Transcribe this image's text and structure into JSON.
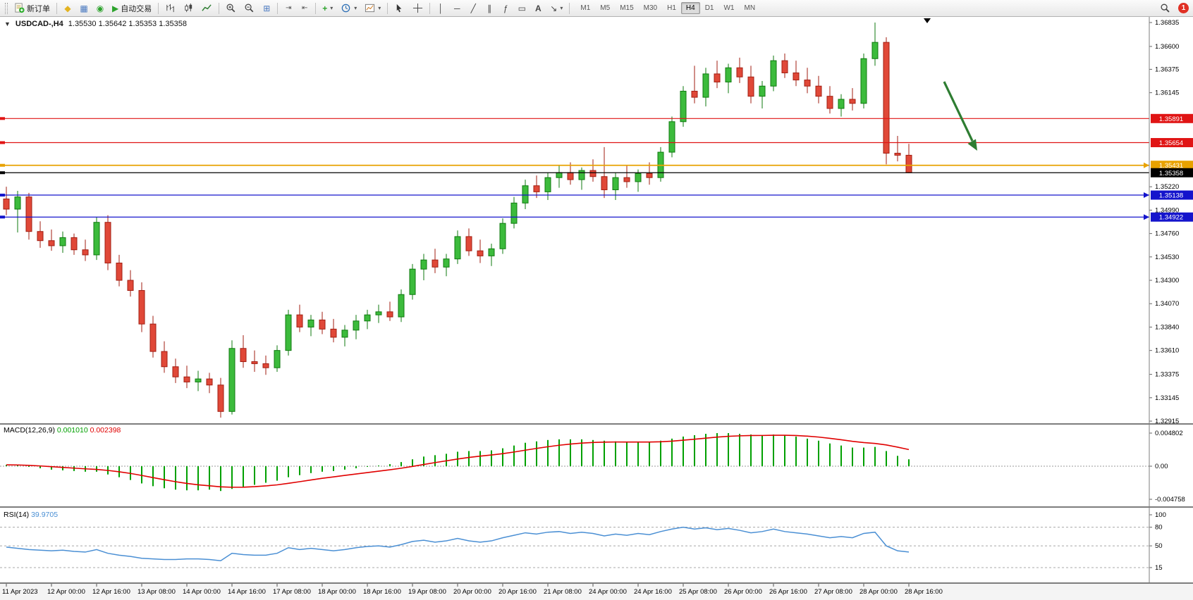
{
  "toolbar": {
    "new_order_label": "新订单",
    "autotrading_label": "自动交易",
    "timeframes": [
      "M1",
      "M5",
      "M15",
      "M30",
      "H1",
      "H4",
      "D1",
      "W1",
      "MN"
    ],
    "active_timeframe": "H4",
    "notification_count": "1"
  },
  "chart": {
    "title": "USDCAD-,H4",
    "ohlc": "1.35530 1.35642 1.35353 1.35358"
  },
  "chart_data": {
    "type": "candlestick",
    "symbol": "USDCAD-",
    "timeframe": "H4",
    "current_bar": {
      "open": 1.3553,
      "high": 1.35642,
      "low": 1.35353,
      "close": 1.35358
    },
    "price_axis": {
      "max": 1.36835,
      "min": 1.32915,
      "ticks": [
        "1.36835",
        "1.36600",
        "1.36375",
        "1.36145",
        "1.35220",
        "1.34990",
        "1.34760",
        "1.34530",
        "1.34300",
        "1.34070",
        "1.33840",
        "1.33610",
        "1.33375",
        "1.33145",
        "1.32915"
      ]
    },
    "hlines": [
      {
        "price": 1.35891,
        "label": "1.35891",
        "role": "resistance"
      },
      {
        "price": 1.35654,
        "label": "1.35654",
        "role": "resistance"
      },
      {
        "price": 1.35431,
        "label": "1.35431",
        "role": "level"
      },
      {
        "price": 1.35358,
        "label": "1.35358",
        "role": "current"
      },
      {
        "price": 1.35138,
        "label": "1.35138",
        "role": "support"
      },
      {
        "price": 1.34922,
        "label": "1.34922",
        "role": "support"
      }
    ],
    "time_labels": [
      "11 Apr 2023",
      "12 Apr 00:00",
      "12 Apr 16:00",
      "13 Apr 08:00",
      "14 Apr 00:00",
      "14 Apr 16:00",
      "17 Apr 08:00",
      "18 Apr 00:00",
      "18 Apr 16:00",
      "19 Apr 08:00",
      "20 Apr 00:00",
      "20 Apr 16:00",
      "21 Apr 08:00",
      "24 Apr 00:00",
      "24 Apr 16:00",
      "25 Apr 08:00",
      "26 Apr 00:00",
      "26 Apr 16:00",
      "27 Apr 08:00",
      "28 Apr 00:00",
      "28 Apr 16:00"
    ],
    "candles": [
      [
        1.351,
        1.3522,
        1.3494,
        1.35
      ],
      [
        1.35,
        1.3518,
        1.3477,
        1.3512
      ],
      [
        1.3512,
        1.3516,
        1.347,
        1.3478
      ],
      [
        1.3478,
        1.3488,
        1.3462,
        1.3469
      ],
      [
        1.3469,
        1.348,
        1.3459,
        1.3464
      ],
      [
        1.3464,
        1.3478,
        1.3457,
        1.3472
      ],
      [
        1.3472,
        1.3476,
        1.3455,
        1.346
      ],
      [
        1.346,
        1.347,
        1.3449,
        1.3455
      ],
      [
        1.3455,
        1.3492,
        1.345,
        1.3487
      ],
      [
        1.3487,
        1.3494,
        1.344,
        1.3447
      ],
      [
        1.3447,
        1.3455,
        1.3424,
        1.343
      ],
      [
        1.343,
        1.344,
        1.3414,
        1.342
      ],
      [
        1.342,
        1.3428,
        1.3379,
        1.3387
      ],
      [
        1.3387,
        1.3395,
        1.3354,
        1.336
      ],
      [
        1.336,
        1.337,
        1.3339,
        1.3345
      ],
      [
        1.3345,
        1.3353,
        1.3329,
        1.3335
      ],
      [
        1.3335,
        1.3346,
        1.3324,
        1.333
      ],
      [
        1.333,
        1.3341,
        1.3321,
        1.3333
      ],
      [
        1.3333,
        1.3339,
        1.3319,
        1.3327
      ],
      [
        1.3327,
        1.3334,
        1.3295,
        1.3301
      ],
      [
        1.3301,
        1.3371,
        1.3298,
        1.3363
      ],
      [
        1.3363,
        1.3376,
        1.3344,
        1.335
      ],
      [
        1.335,
        1.3361,
        1.334,
        1.3348
      ],
      [
        1.3348,
        1.3356,
        1.3337,
        1.3344
      ],
      [
        1.3344,
        1.3366,
        1.334,
        1.3361
      ],
      [
        1.3361,
        1.3401,
        1.3356,
        1.3396
      ],
      [
        1.3396,
        1.3406,
        1.3379,
        1.3384
      ],
      [
        1.3384,
        1.3396,
        1.3375,
        1.3391
      ],
      [
        1.3391,
        1.3399,
        1.3377,
        1.3382
      ],
      [
        1.3382,
        1.3392,
        1.3369,
        1.3374
      ],
      [
        1.3374,
        1.3386,
        1.3365,
        1.3381
      ],
      [
        1.3381,
        1.3396,
        1.3372,
        1.339
      ],
      [
        1.339,
        1.3401,
        1.3382,
        1.3396
      ],
      [
        1.3396,
        1.3406,
        1.3388,
        1.3399
      ],
      [
        1.3399,
        1.3409,
        1.339,
        1.3394
      ],
      [
        1.3394,
        1.3421,
        1.3389,
        1.3416
      ],
      [
        1.3416,
        1.3446,
        1.3411,
        1.3441
      ],
      [
        1.3441,
        1.3456,
        1.343,
        1.345
      ],
      [
        1.345,
        1.3461,
        1.3437,
        1.3443
      ],
      [
        1.3443,
        1.3456,
        1.3434,
        1.3451
      ],
      [
        1.3451,
        1.3479,
        1.3446,
        1.3473
      ],
      [
        1.3473,
        1.3481,
        1.3454,
        1.3459
      ],
      [
        1.3459,
        1.347,
        1.3447,
        1.3454
      ],
      [
        1.3454,
        1.3466,
        1.3444,
        1.3461
      ],
      [
        1.3461,
        1.3491,
        1.3456,
        1.3486
      ],
      [
        1.3486,
        1.3512,
        1.3481,
        1.3506
      ],
      [
        1.3506,
        1.3529,
        1.35,
        1.3523
      ],
      [
        1.3523,
        1.3533,
        1.3511,
        1.3517
      ],
      [
        1.3517,
        1.3536,
        1.3509,
        1.3531
      ],
      [
        1.3531,
        1.3543,
        1.3521,
        1.3536
      ],
      [
        1.3536,
        1.3546,
        1.3524,
        1.3529
      ],
      [
        1.3529,
        1.3541,
        1.3519,
        1.3538
      ],
      [
        1.3538,
        1.3549,
        1.3527,
        1.3532
      ],
      [
        1.3532,
        1.3561,
        1.3511,
        1.3519
      ],
      [
        1.3519,
        1.3536,
        1.3509,
        1.3531
      ],
      [
        1.3531,
        1.3543,
        1.3521,
        1.3527
      ],
      [
        1.3527,
        1.3539,
        1.3517,
        1.3535
      ],
      [
        1.3535,
        1.3546,
        1.3524,
        1.3531
      ],
      [
        1.3531,
        1.3561,
        1.3527,
        1.3556
      ],
      [
        1.3556,
        1.3591,
        1.3551,
        1.3586
      ],
      [
        1.3586,
        1.3621,
        1.3581,
        1.3616
      ],
      [
        1.3616,
        1.3641,
        1.3604,
        1.361
      ],
      [
        1.361,
        1.3639,
        1.3601,
        1.3633
      ],
      [
        1.3633,
        1.3646,
        1.3619,
        1.3625
      ],
      [
        1.3625,
        1.3643,
        1.3614,
        1.3639
      ],
      [
        1.3639,
        1.3649,
        1.3624,
        1.363
      ],
      [
        1.363,
        1.3641,
        1.3604,
        1.3611
      ],
      [
        1.3611,
        1.3626,
        1.3599,
        1.3621
      ],
      [
        1.3621,
        1.3651,
        1.3616,
        1.3646
      ],
      [
        1.3646,
        1.3653,
        1.3629,
        1.3634
      ],
      [
        1.3634,
        1.3646,
        1.3621,
        1.3627
      ],
      [
        1.3627,
        1.3639,
        1.3614,
        1.3621
      ],
      [
        1.3621,
        1.3631,
        1.3604,
        1.3611
      ],
      [
        1.3611,
        1.3621,
        1.3594,
        1.3599
      ],
      [
        1.3599,
        1.3613,
        1.3591,
        1.3608
      ],
      [
        1.3608,
        1.3619,
        1.3597,
        1.3604
      ],
      [
        1.3604,
        1.3653,
        1.3599,
        1.3648
      ],
      [
        1.3648,
        1.36835,
        1.3641,
        1.3664
      ],
      [
        1.3664,
        1.3669,
        1.3544,
        1.3555
      ],
      [
        1.3555,
        1.3572,
        1.3547,
        1.3553
      ],
      [
        1.3553,
        1.35642,
        1.35353,
        1.35358
      ]
    ],
    "macd": {
      "label": "MACD(12,26,9)",
      "value_main": "0.001010",
      "value_signal": "0.002398",
      "axis_ticks": [
        "0.004802",
        "0.00",
        "-0.004758"
      ],
      "histogram": [
        0.0002,
        0.0001,
        -0.0001,
        -0.0003,
        -0.0005,
        -0.0006,
        -0.0007,
        -0.0008,
        -0.0008,
        -0.0012,
        -0.0016,
        -0.002,
        -0.0025,
        -0.0029,
        -0.0032,
        -0.0034,
        -0.0035,
        -0.0035,
        -0.0034,
        -0.0036,
        -0.0033,
        -0.003,
        -0.0027,
        -0.0024,
        -0.0021,
        -0.0016,
        -0.0013,
        -0.001,
        -0.0008,
        -0.0007,
        -0.0005,
        -0.0003,
        -0.0001,
        0.0001,
        0.0003,
        0.0006,
        0.001,
        0.0014,
        0.0016,
        0.0018,
        0.0021,
        0.0022,
        0.0022,
        0.0023,
        0.0026,
        0.003,
        0.0034,
        0.0036,
        0.0038,
        0.0039,
        0.0039,
        0.0039,
        0.0038,
        0.0037,
        0.0036,
        0.0035,
        0.0035,
        0.0035,
        0.0037,
        0.004,
        0.0043,
        0.0045,
        0.0047,
        0.0048,
        0.0048,
        0.0047,
        0.0046,
        0.0045,
        0.0046,
        0.0045,
        0.0043,
        0.004,
        0.0037,
        0.0033,
        0.003,
        0.0027,
        0.0027,
        0.0028,
        0.0022,
        0.0015,
        0.001
      ]
    },
    "rsi": {
      "label": "RSI(14)",
      "value": "39.9705",
      "axis_ticks": [
        "100",
        "80",
        "50",
        "15"
      ],
      "levels": [
        80,
        50,
        15
      ],
      "values": [
        48,
        46,
        44,
        43,
        42,
        43,
        41,
        40,
        44,
        38,
        35,
        33,
        30,
        29,
        28,
        28,
        29,
        29,
        28,
        26,
        38,
        36,
        35,
        35,
        38,
        47,
        44,
        46,
        44,
        42,
        44,
        47,
        49,
        50,
        48,
        52,
        57,
        59,
        56,
        58,
        62,
        58,
        56,
        58,
        63,
        67,
        71,
        69,
        72,
        73,
        70,
        72,
        70,
        66,
        69,
        67,
        70,
        68,
        73,
        77,
        80,
        77,
        79,
        76,
        78,
        75,
        71,
        73,
        77,
        73,
        71,
        69,
        66,
        63,
        65,
        63,
        70,
        72,
        50,
        42,
        40
      ]
    },
    "annotations": [
      {
        "type": "arrow",
        "direction": "down-right",
        "color": "#2e7d32"
      }
    ],
    "colors": {
      "bull": "#3cbb3c",
      "bull_border": "#0f7a0f",
      "bear": "#e04838",
      "bear_border": "#a21e12",
      "macd_histogram": "#00a000",
      "macd_signal": "#e00000",
      "rsi_line": "#4a8fd4",
      "resistance": "#e01414",
      "support": "#1414cc",
      "level": "#e8a200",
      "current": "#000000"
    }
  }
}
